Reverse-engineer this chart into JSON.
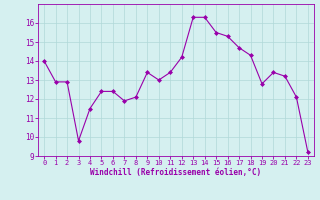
{
  "x": [
    0,
    1,
    2,
    3,
    4,
    5,
    6,
    7,
    8,
    9,
    10,
    11,
    12,
    13,
    14,
    15,
    16,
    17,
    18,
    19,
    20,
    21,
    22,
    23
  ],
  "y": [
    14.0,
    12.9,
    12.9,
    9.8,
    11.5,
    12.4,
    12.4,
    11.9,
    12.1,
    13.4,
    13.0,
    13.4,
    14.2,
    16.3,
    16.3,
    15.5,
    15.3,
    14.7,
    14.3,
    12.8,
    13.4,
    13.2,
    12.1,
    9.2
  ],
  "line_color": "#9900aa",
  "marker_color": "#9900aa",
  "bg_color": "#d5f0f0",
  "grid_color": "#b0d8d8",
  "xlabel": "Windchill (Refroidissement éolien,°C)",
  "xlabel_color": "#9900aa",
  "ylim": [
    9,
    17
  ],
  "yticks": [
    9,
    10,
    11,
    12,
    13,
    14,
    15,
    16
  ],
  "xticks": [
    0,
    1,
    2,
    3,
    4,
    5,
    6,
    7,
    8,
    9,
    10,
    11,
    12,
    13,
    14,
    15,
    16,
    17,
    18,
    19,
    20,
    21,
    22,
    23
  ],
  "tick_color": "#9900aa",
  "spine_color": "#9900aa"
}
